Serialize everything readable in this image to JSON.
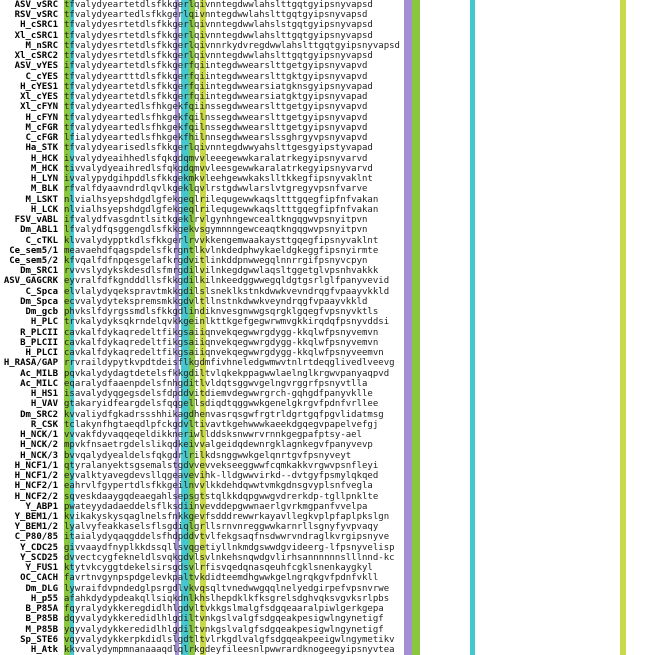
{
  "alignment": {
    "rows": [
      {
        "name": "ASV_vSRC",
        "seq": "tfvalydyeartetdlsfkkgerlqivnntegdwwlahslttgqtgyipsnyvapsd"
      },
      {
        "name": "RSV_vSRC",
        "seq": "tfvalydyeartedlsfkkgerlqivnntegdwwlahslttgqtgyipsnyvapsd"
      },
      {
        "name": "H_cSRC1",
        "seq": "tfvalydyesrtetdlsfkkgerlqivnntegdwwlahslstgqtgyipsnyvapsd"
      },
      {
        "name": "Xl_cSRC1",
        "seq": "tfvalydyesrtetdlsfkkgerlqivnntegdwwlahslttgqtgyipsnyvapsd"
      },
      {
        "name": "M_nSRC",
        "seq": "tfvalydyesrtetdlsfkkgerlqivnnrkydvregdwwlahslttgqtgyipsnyvapsd"
      },
      {
        "name": "Xl_cSRC2",
        "seq": "tfvalydyesrtetdlsfkkgerlqivnntegdwwlahslttgqtgyipsnyvapsd"
      },
      {
        "name": "ASV_vYES",
        "seq": "ifvalydyeartetdlsfkkgerfqiintegdwwearslttgetgyipsnyvapvd"
      },
      {
        "name": "C_cYES",
        "seq": "tfvalydyeartttdlsfkkgerfqiintegdwwearslttgktgyipsnyvapvd"
      },
      {
        "name": "H_cYES1",
        "seq": "tfvalydyeartetdlsfkkgerfqiintegdwwearsiatgknsgyipsnyvapad"
      },
      {
        "name": "Xl_cYES",
        "seq": "tfvalydyeartetdlsfkkgerfqiintegdwwearsiatgktgyipsnyvapad"
      },
      {
        "name": "Xl_cFYN",
        "seq": "tfvalydyeartedlsfhkgekfqiinssegdwwearslttgetgyipsnyvapvd"
      },
      {
        "name": "H_cFYN",
        "seq": "tfvalydyeartedlsfhkgekfqilnssegdwwearslttgetgyipsnyvapvd"
      },
      {
        "name": "M_cFGR",
        "seq": "tfvalydyeartedlsfhkgekfqilnssegdwwearslttgetgyipsnyvapvd"
      },
      {
        "name": "C_cFGR",
        "seq": "lfialydyeartedlsfhkgekfhilnnsegdwwearslssghrgyvpsnyvapvd"
      },
      {
        "name": "Ha_STK",
        "seq": "tfvalydyearisedlsfkkgerlqivnntegdwwyahslttgesgyipstyvapad"
      },
      {
        "name": "H_HCK",
        "seq": "ivvalydyeaihhedlsfqkgdqmvvleeegewwkaralatrkegyipsnyvarvd"
      },
      {
        "name": "M_HCK",
        "seq": "tivvalydyeaihredlsfqkgdqmvvleesgewwkaralatrkegyipsnyvarvd"
      },
      {
        "name": "H_LYN",
        "seq": "ivvalypydgihpddlsfkkgekmkvleehgewwkakslltkkegfipsnyvaklnt"
      },
      {
        "name": "M_BLK",
        "seq": "rfvalfdyaavndrdlqvlkgeklqvlrstgdwwlarslvtgregyvpsnfvarve"
      },
      {
        "name": "M_LSKT",
        "seq": "nlvialhsyepshdgdlgfekgeqlrilequgewwkaqsltttgqegfipfnfvakan"
      },
      {
        "name": "H_LCK",
        "seq": "nlvialhsyepshdgdlgfekgeqlrilequgewwkaqsltttgqegfipfnfvakan"
      },
      {
        "name": "FSV_vABL",
        "seq": "ifvalydfvasgdntlsitkgeklrvlgynhngewcealtkngqgwvpsnyitpvn"
      },
      {
        "name": "Dm_ABL1",
        "seq": "lfvalydfqsggengdlsfkkgekvsgymnnngewceaqtkngqgwvpsnyitpvn"
      },
      {
        "name": "C_cTKL",
        "seq": "klvvalydypptkdlsfkkgerlrvvkkengemwaakaysttgqegfipsnyvaklnt"
      },
      {
        "name": "Ce_sem5/1",
        "seq": "meavaehdfqagspdelsfkrgntlkvlnkdedphwykaeldgkeggfipsnyirmte"
      },
      {
        "name": "Ce_sem5/2",
        "seq": "kfvqalfdfnpqesgelafkrgdvitlinkddpnwwegqlnnrrgifpsnyvcpyn"
      },
      {
        "name": "Dm_SRC1",
        "seq": "rvvvslydykskdesdlsfmrgdilvilnkegdgwwlaqsltggetglvpsnhvakkk"
      },
      {
        "name": "ASV_GAGCRK",
        "seq": "eyvralfdfkgndddllsfkkgdilkilnkeedggwwegqldgtgsrlglfpanyvevid"
      },
      {
        "name": "C_Spca",
        "seq": "elvlalydyqekspravtmkkgdilslsneklkstnkdwwkvevndrqgfvpaayvkkld"
      },
      {
        "name": "Dm_Spca",
        "seq": "ecvvalydytekspremsmkkgdvltllnstnkdwwkveyndrqgfvpaayvkkld"
      },
      {
        "name": "Dm_gcb",
        "seq": "phvkslfdyrgssmdlsfkkgdlindiknvesgnwwgsqrgklgqegfvpsnyvktls"
      },
      {
        "name": "H_PLC",
        "seq": "trvkalydyksqkrndelqvkkgeinlkttkgefgegwrwmvgkkirqdqfpsnyvddsi"
      },
      {
        "name": "R_PLCII",
        "seq": "cavkalfdykaqredeltfikgsaiiqnvekqegwwrgdygg-kkqlwfpsnyvemvn"
      },
      {
        "name": "B_PLCII",
        "seq": "cavkalfdykaqredeltfikgsaiiqnvekqegwwrgdygg-kkqlwfpsnyvemvn"
      },
      {
        "name": "H_PLCI",
        "seq": "cavkalfdykaqredeltfikgsaiiqnvekqegwwrgdygg-kkqlwfpsnyveemvn"
      },
      {
        "name": "H_RASA/GAP",
        "seq": "rrvraildypytkvpdtdeisflkgdmfivhneledgwmwvtnlrtdeqglivedlveevg"
      },
      {
        "name": "Ac_MILB",
        "seq": "pqvkalydydagtdetelsfkkgdiltvlqkekppagwwlaelnglkrgwvpanyaqpvd"
      },
      {
        "name": "Ac_MILC",
        "seq": "eqaralydfaaenpdelsfnhgditlvldqtsggwvgelngvrggrfpsnyvtlla"
      },
      {
        "name": "H_HS1",
        "seq": "isavalydyqgegsdelsfdpddvitdiemvdegwwrgrch-gqhgdfpanyvklle"
      },
      {
        "name": "H_VAV",
        "seq": "gtakaryidfeargdelsfqqgellsdiqdtqggwwkgenelgkrgvfpdnfvrllee"
      },
      {
        "name": "Dm_SRC2",
        "seq": "kvvaliydfgkadrssshhikagdhenvasrqsgwfrgtrldgrtgqfpgvlidatmsg"
      },
      {
        "name": "R_CSK",
        "seq": "tclakynfhgtaeqdlpfckgdvltivavtkgehwwwkaeekdgqegvpapelvefgj"
      },
      {
        "name": "H_NCK/1",
        "seq": "vvvakfdyvaqqeqeldikkneriwllddsksnwwrvrnnkgegpafptsy-ael"
      },
      {
        "name": "H_NCK/2",
        "seq": "mpvkfnsaetrgdelslikqdkeivvalgeidqdewnrgklagnkegvfpanyvevp"
      },
      {
        "name": "H_NCK/3",
        "seq": "bvvqalydyealdelsfqkgdrlrilkdsnggwwkgelqnrtgvfpsnyveyt"
      },
      {
        "name": "H_NCF1/1",
        "seq": "qtyralanyektsgsemalstgdvvevvekseeggwwfcqmkakkvrgwvpsnfleyi"
      },
      {
        "name": "H_NCF1/2",
        "seq": "eyvalktyavegdevsllqgeavevihk-lldgwwvirkd--dvtgyfpsmylqkqed"
      },
      {
        "name": "H_NCF2/1",
        "seq": "eahrvlfgypertdlsfkkgeilnvvlkkdehdqwwtvmkgdnsgvyplsnfvegla"
      },
      {
        "name": "H_NCF2/2",
        "seq": "sqveskdaaygqdeaegahlsepsgtstqlkkdqpgwwgvdrerkdp-tgllpnklte"
      },
      {
        "name": "Y_ABP1",
        "seq": "pwateyydadaeddelsflksdiinvevddepgwwnaerlgvrkmgpanfvvelpa"
      },
      {
        "name": "Y_BEM1/1",
        "seq": "kvikakyskysqaglnelsfnkkgevfsdddrewwrkayavllegkvplpfaplpkslgn"
      },
      {
        "name": "Y_BEM1/2",
        "seq": "lyalvyfeakkaselsflsgdiqlgrllsrnvnreggwwkarnrllsgnyfyvpvaqy"
      },
      {
        "name": "C_P80/85",
        "seq": "itaialydyqaqgddelsfhdpddvtvlfekgsaqfnsdwwrvndraglkvrgipsnyve"
      },
      {
        "name": "Y_CDC25",
        "seq": "givvaaydfnyplkkdssqllsvqgetiyllnkmdgswwdgvideerg-lfpsnyvelisp"
      },
      {
        "name": "Y_SCD25",
        "seq": "dvvectcygfekneldlsvqkgdvlsvlnkehsnqwdgvlirhsannnnnnslllnnd-kc"
      },
      {
        "name": "Y_FUS1",
        "seq": "ktytvkcyggtdekelsirsgdsvlrfisvqedqnasqeuhfcgklsnenkaygkyl"
      },
      {
        "name": "OC_CACH",
        "seq": "favrtnvgynpspdgelevkpaltvkdidteemdhgwwkgelngrqkgvfpdnfvkll"
      },
      {
        "name": "Dm_DLG",
        "seq": "lywraifdvpndedglpsrgdlvkvqsqltvnedwwgqqlnelyedgirpefvpsnvrwe"
      },
      {
        "name": "H_p55",
        "seq": "afahkdydypdeakqllsiqkdnlkhslhepdklkfksgrelsdghvqksvgvksrlpbs"
      },
      {
        "name": "B_P85A",
        "seq": "fqyralydykkeregdidlhlgdvltvkkgslmalgfsdgqeaaralpiwlgerkgepa"
      },
      {
        "name": "B_P85B",
        "seq": "dqyvalydykkeredidlhlgdiltvnkgslvalgfsdgqeakpesigwlngynetigf"
      },
      {
        "name": "M_P85B",
        "seq": "yqyvalydykkeredidlhlgdiltvnkgslvalgfsdgqeakpesigwlngynetigf"
      },
      {
        "name": "Sp_STE6",
        "seq": "vqyvalydykkerpkdidlslgdtltvlrkgdlvalgfsdgqeakpeeigwlngymetikv"
      },
      {
        "name": "H_Atk",
        "seq": "kkvvalydympmnanaaaqdlqlrkgdeyfileesnlpwwrardknogeegyipsnyvtea"
      }
    ]
  },
  "colors": {
    "background": "#ffffff",
    "hydrophobic_blue": "#5ea7e0",
    "cyan": "#45c7cf",
    "green": "#8cc63e",
    "lime": "#c9d94a",
    "orange": "#f0a03c",
    "purple": "#a58fd4",
    "yellow": "#f2e356"
  }
}
